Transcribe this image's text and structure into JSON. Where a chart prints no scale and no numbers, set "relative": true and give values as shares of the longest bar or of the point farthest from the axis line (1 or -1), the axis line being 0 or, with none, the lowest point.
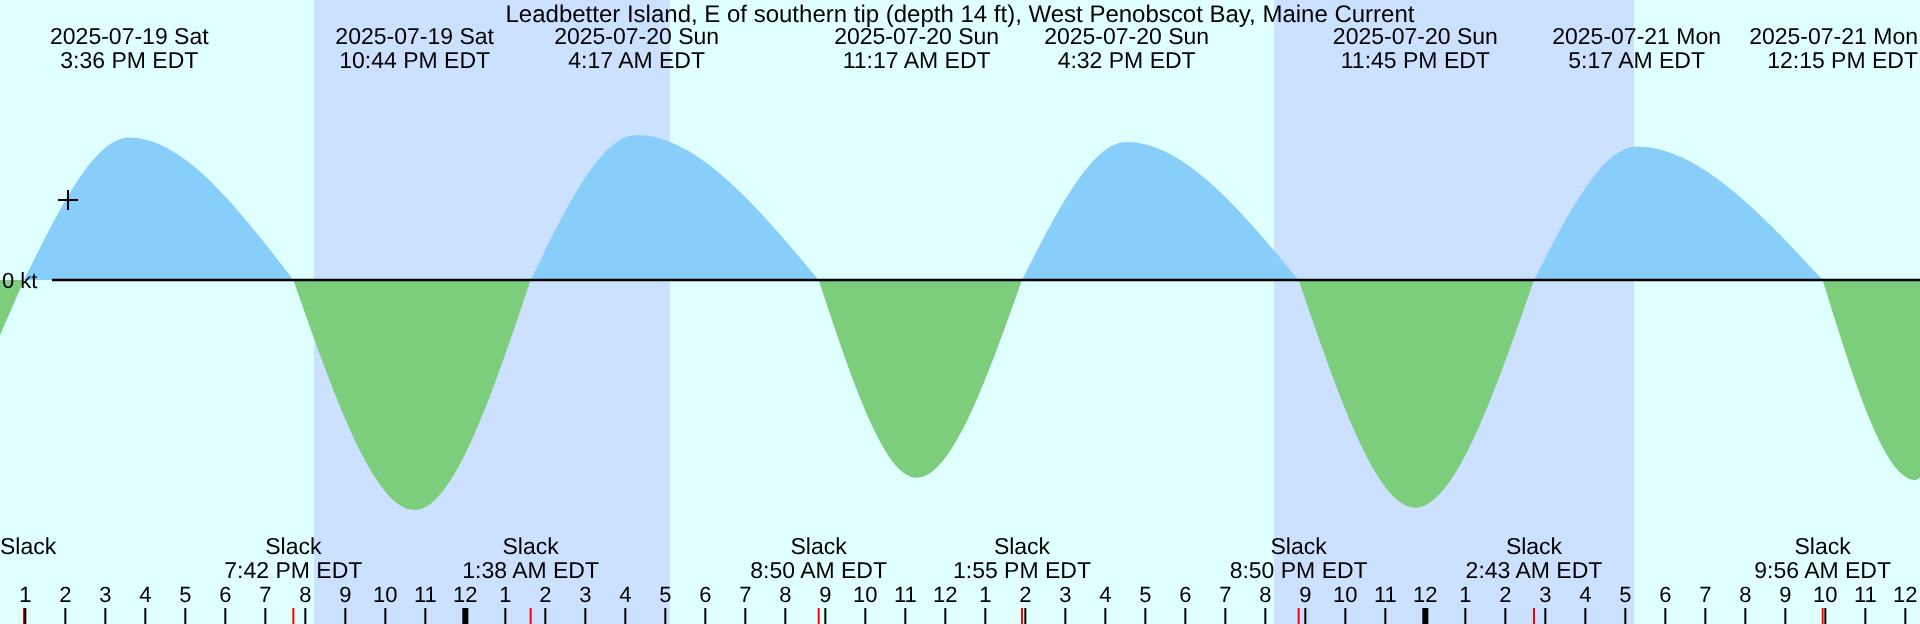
{
  "chart_data": {
    "type": "area",
    "title": "Leadbetter Island, E of southern tip (depth 14 ft), West Penobscot Bay, Maine Current",
    "relative": true,
    "x": [
      "2025-07-19T12:22",
      "2025-07-19T12:58",
      "2025-07-19T15:36",
      "2025-07-19T19:42",
      "2025-07-19T22:44",
      "2025-07-20T01:38",
      "2025-07-20T04:17",
      "2025-07-20T08:50",
      "2025-07-20T11:17",
      "2025-07-20T13:55",
      "2025-07-20T16:32",
      "2025-07-20T20:50",
      "2025-07-20T23:45",
      "2025-07-21T02:43",
      "2025-07-21T05:17",
      "2025-07-21T09:56",
      "2025-07-21T12:15",
      "2025-07-21T12:22"
    ],
    "xlim": [
      "2025-07-19T12:22",
      "2025-07-21T12:22"
    ],
    "xticks": [
      {
        "value": "2025-07-19T13:00",
        "label": "1"
      },
      {
        "value": "2025-07-19T14:00",
        "label": "2"
      },
      {
        "value": "2025-07-19T15:00",
        "label": "3"
      },
      {
        "value": "2025-07-19T16:00",
        "label": "4"
      },
      {
        "value": "2025-07-19T17:00",
        "label": "5"
      },
      {
        "value": "2025-07-19T18:00",
        "label": "6"
      },
      {
        "value": "2025-07-19T19:00",
        "label": "7"
      },
      {
        "value": "2025-07-19T20:00",
        "label": "8"
      },
      {
        "value": "2025-07-19T21:00",
        "label": "9"
      },
      {
        "value": "2025-07-19T22:00",
        "label": "10"
      },
      {
        "value": "2025-07-19T23:00",
        "label": "11"
      },
      {
        "value": "2025-07-20T00:00",
        "label": "12"
      },
      {
        "value": "2025-07-20T01:00",
        "label": "1"
      },
      {
        "value": "2025-07-20T02:00",
        "label": "2"
      },
      {
        "value": "2025-07-20T03:00",
        "label": "3"
      },
      {
        "value": "2025-07-20T04:00",
        "label": "4"
      },
      {
        "value": "2025-07-20T05:00",
        "label": "5"
      },
      {
        "value": "2025-07-20T06:00",
        "label": "6"
      },
      {
        "value": "2025-07-20T07:00",
        "label": "7"
      },
      {
        "value": "2025-07-20T08:00",
        "label": "8"
      },
      {
        "value": "2025-07-20T09:00",
        "label": "9"
      },
      {
        "value": "2025-07-20T10:00",
        "label": "10"
      },
      {
        "value": "2025-07-20T11:00",
        "label": "11"
      },
      {
        "value": "2025-07-20T12:00",
        "label": "12"
      },
      {
        "value": "2025-07-20T13:00",
        "label": "1"
      },
      {
        "value": "2025-07-20T14:00",
        "label": "2"
      },
      {
        "value": "2025-07-20T15:00",
        "label": "3"
      },
      {
        "value": "2025-07-20T16:00",
        "label": "4"
      },
      {
        "value": "2025-07-20T17:00",
        "label": "5"
      },
      {
        "value": "2025-07-20T18:00",
        "label": "6"
      },
      {
        "value": "2025-07-20T19:00",
        "label": "7"
      },
      {
        "value": "2025-07-20T20:00",
        "label": "8"
      },
      {
        "value": "2025-07-20T21:00",
        "label": "9"
      },
      {
        "value": "2025-07-20T22:00",
        "label": "10"
      },
      {
        "value": "2025-07-20T23:00",
        "label": "11"
      },
      {
        "value": "2025-07-21T00:00",
        "label": "12"
      },
      {
        "value": "2025-07-21T01:00",
        "label": "1"
      },
      {
        "value": "2025-07-21T02:00",
        "label": "2"
      },
      {
        "value": "2025-07-21T03:00",
        "label": "3"
      },
      {
        "value": "2025-07-21T04:00",
        "label": "4"
      },
      {
        "value": "2025-07-21T05:00",
        "label": "5"
      },
      {
        "value": "2025-07-21T06:00",
        "label": "6"
      },
      {
        "value": "2025-07-21T07:00",
        "label": "7"
      },
      {
        "value": "2025-07-21T08:00",
        "label": "8"
      },
      {
        "value": "2025-07-21T09:00",
        "label": "9"
      },
      {
        "value": "2025-07-21T10:00",
        "label": "10"
      },
      {
        "value": "2025-07-21T11:00",
        "label": "11"
      },
      {
        "value": "2025-07-21T12:00",
        "label": "12"
      }
    ],
    "series": [
      {
        "color": "#87cefa",
        "values": [
          null,
          0,
          0.62,
          0,
          null,
          0,
          0.63,
          0,
          null,
          0,
          0.6,
          0,
          null,
          0,
          0.58,
          0,
          null,
          null
        ]
      },
      {
        "color": "#7ccd7c",
        "values": [
          -0.24,
          0,
          null,
          0,
          -1,
          0,
          null,
          0,
          -0.86,
          0,
          null,
          0,
          -0.99,
          0,
          null,
          0,
          -0.87,
          -0.86
        ]
      }
    ],
    "bands": [
      {
        "axis": "x",
        "from": "2025-07-19T20:13",
        "to": "2025-07-20T05:07",
        "color": "#cce0ff"
      },
      {
        "axis": "x",
        "from": "2025-07-20T20:13",
        "to": "2025-07-21T05:13",
        "color": "#cce0ff"
      }
    ],
    "ref_lines": [
      {
        "axis": "y",
        "value": 0,
        "label": "0 kt",
        "color": "#000000"
      }
    ],
    "annotations": [
      "Slack",
      "2025-07-19 Sat\n3:36 PM EDT",
      "Slack\n7:42 PM EDT",
      "2025-07-19 Sat\n10:44 PM EDT",
      "Slack\n1:38 AM EDT",
      "2025-07-20 Sun\n4:17 AM EDT",
      "Slack\n8:50 AM EDT",
      "2025-07-20 Sun\n11:17 AM EDT",
      "Slack\n1:55 PM EDT",
      "2025-07-20 Sun\n4:32 PM EDT",
      "Slack\n8:50 PM EDT",
      "2025-07-20 Sun\n11:45 PM EDT",
      "Slack\n2:43 AM EDT",
      "2025-07-21 Mon\n5:17 AM EDT",
      "Slack\n9:56 AM EDT",
      "2025-07-21 Mon\n12:15 PM EDT"
    ]
  }
}
